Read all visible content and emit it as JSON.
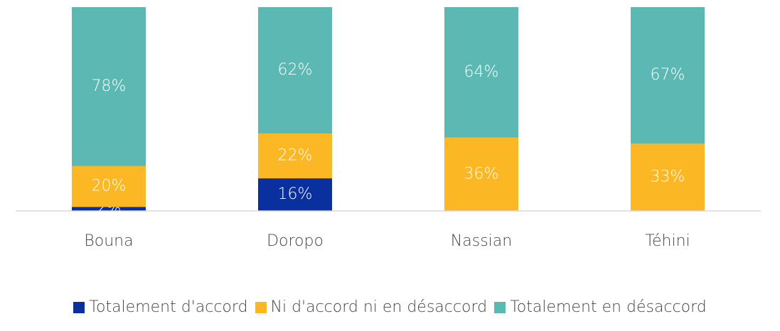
{
  "chart_data": {
    "type": "stacked_bar",
    "categories": [
      "Bouna",
      "Doropo",
      "Nassian",
      "Téhini"
    ],
    "series": [
      {
        "name": "Totalement d'accord",
        "color": "#0a2f9e",
        "values": [
          2,
          16,
          null,
          null
        ],
        "value_labels": [
          "2%",
          "16%",
          null,
          null
        ]
      },
      {
        "name": "Ni d'accord ni en désaccord",
        "color": "#fbb724",
        "values": [
          20,
          22,
          36,
          33
        ],
        "value_labels": [
          "20%",
          "22%",
          "36%",
          "33%"
        ]
      },
      {
        "name": "Totalement en désaccord",
        "color": "#5bb8b3",
        "values": [
          78,
          62,
          64,
          67
        ],
        "value_labels": [
          "78%",
          "62%",
          "64%",
          "67%"
        ]
      }
    ],
    "ylim": [
      0,
      100
    ]
  }
}
